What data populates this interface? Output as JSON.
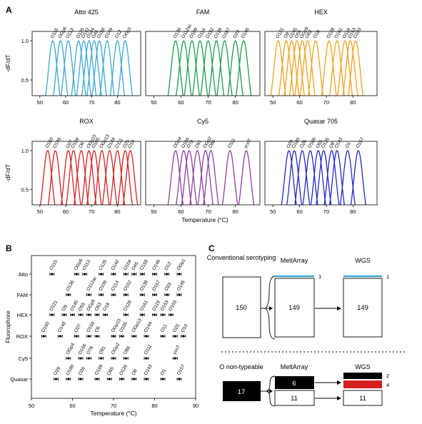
{
  "panel_labels": [
    "A",
    "B",
    "C"
  ],
  "chart_data": [
    {
      "type": "line",
      "panel": "A",
      "xlabel": "Temperature (°C)",
      "ylabel": "-dF/dT",
      "xlim": [
        47,
        89
      ],
      "ylim": [
        0.3,
        1.12
      ],
      "xticks": [
        50,
        60,
        70,
        80
      ],
      "yticks": [
        0.5,
        1.0
      ],
      "colors": {
        "Atto 425": "#3aa7d6",
        "FAM": "#1e9e4a",
        "HEX": "#f0a21c",
        "ROX": "#d42020",
        "Cy5": "#8a3fa0",
        "Quasar 705": "#2028c8"
      },
      "series": [
        {
          "name": "Atto 425",
          "peaks": [
            {
              "label": "O115",
              "tm": 55
            },
            {
              "label": "OGp6",
              "tm": 58
            },
            {
              "label": "O113",
              "tm": 61
            },
            {
              "label": "O125",
              "tm": 65
            },
            {
              "label": "O142",
              "tm": 67
            },
            {
              "label": "O104",
              "tm": 69
            },
            {
              "label": "O45",
              "tm": 71
            },
            {
              "label": "O158",
              "tm": 73
            },
            {
              "label": "O149",
              "tm": 76
            },
            {
              "label": "O12",
              "tm": 80
            },
            {
              "label": "OGp1",
              "tm": 83
            }
          ]
        },
        {
          "name": "FAM",
          "peaks": [
            {
              "label": "O136",
              "tm": 58
            },
            {
              "label": "O112ac",
              "tm": 61
            },
            {
              "label": "O109",
              "tm": 64
            },
            {
              "label": "O114",
              "tm": 67
            },
            {
              "label": "O152",
              "tm": 70
            },
            {
              "label": "O139",
              "tm": 73
            },
            {
              "label": "O167",
              "tm": 76
            },
            {
              "label": "O23",
              "tm": 80
            },
            {
              "label": "O146",
              "tm": 83
            }
          ]
        },
        {
          "name": "HEX",
          "peaks": [
            {
              "label": "O121",
              "tm": 52
            },
            {
              "label": "O9",
              "tm": 55
            },
            {
              "label": "O145",
              "tm": 57
            },
            {
              "label": "O55",
              "tm": 59
            },
            {
              "label": "OGp9",
              "tm": 61
            },
            {
              "label": "O63",
              "tm": 63
            },
            {
              "label": "O18",
              "tm": 66
            },
            {
              "label": "O128",
              "tm": 71
            },
            {
              "label": "O161",
              "tm": 74
            },
            {
              "label": "O119",
              "tm": 77
            },
            {
              "label": "O153",
              "tm": 79
            },
            {
              "label": "O103",
              "tm": 81
            }
          ]
        },
        {
          "name": "ROX",
          "peaks": [
            {
              "label": "O160",
              "tm": 53
            },
            {
              "label": "O148",
              "tm": 56
            },
            {
              "label": "O27",
              "tm": 61
            },
            {
              "label": "O159",
              "tm": 63
            },
            {
              "label": "O6",
              "tm": 66
            },
            {
              "label": "OGp15",
              "tm": 69
            },
            {
              "label": "O105",
              "tm": 71
            },
            {
              "label": "OGp13",
              "tm": 74
            },
            {
              "label": "O144",
              "tm": 77
            },
            {
              "label": "O111",
              "tm": 80
            },
            {
              "label": "O25",
              "tm": 83
            },
            {
              "label": "O10",
              "tm": 85
            }
          ]
        },
        {
          "name": "Cy5",
          "peaks": [
            {
              "label": "OGp4",
              "tm": 58
            },
            {
              "label": "O166",
              "tm": 61
            },
            {
              "label": "O78",
              "tm": 63
            },
            {
              "label": "O91",
              "tm": 66
            },
            {
              "label": "OGp2",
              "tm": 69
            },
            {
              "label": "O86",
              "tm": 71
            },
            {
              "label": "O111",
              "tm": 78
            },
            {
              "label": "ycoT",
              "tm": 84
            }
          ]
        },
        {
          "name": "Quasar 705",
          "peaks": [
            {
              "label": "O29",
              "tm": 56
            },
            {
              "label": "O180",
              "tm": 58
            },
            {
              "label": "O26",
              "tm": 61
            },
            {
              "label": "O169",
              "tm": 64
            },
            {
              "label": "O65",
              "tm": 67
            },
            {
              "label": "O126",
              "tm": 69
            },
            {
              "label": "O8",
              "tm": 72
            },
            {
              "label": "O143",
              "tm": 74
            },
            {
              "label": "O1",
              "tm": 78
            },
            {
              "label": "O157",
              "tm": 82
            }
          ]
        }
      ]
    },
    {
      "type": "scatter",
      "panel": "B",
      "xlabel": "Temperature (°C)",
      "ylabel": "Fluorophore",
      "xlim": [
        50,
        90
      ],
      "xticks": [
        50,
        60,
        70,
        80,
        90
      ],
      "categories": [
        "Atto",
        "FAM",
        "HEX",
        "ROX",
        "Cy5",
        "Quasar"
      ],
      "series": [
        {
          "name": "Atto",
          "points": [
            {
              "label": "O115",
              "tm": 55
            },
            {
              "label": "OGp6",
              "tm": 61
            },
            {
              "label": "O113",
              "tm": 63
            },
            {
              "label": "O125",
              "tm": 67
            },
            {
              "label": "O142",
              "tm": 70
            },
            {
              "label": "O104",
              "tm": 73
            },
            {
              "label": "O45",
              "tm": 75
            },
            {
              "label": "O158",
              "tm": 77
            },
            {
              "label": "O149",
              "tm": 80
            },
            {
              "label": "O12",
              "tm": 83
            },
            {
              "label": "OGp1",
              "tm": 86
            }
          ]
        },
        {
          "name": "FAM",
          "points": [
            {
              "label": "O136",
              "tm": 59
            },
            {
              "label": "O112ac",
              "tm": 64
            },
            {
              "label": "O109",
              "tm": 67
            },
            {
              "label": "O114",
              "tm": 70
            },
            {
              "label": "O152",
              "tm": 73
            },
            {
              "label": "O139",
              "tm": 77
            },
            {
              "label": "O167",
              "tm": 80
            },
            {
              "label": "O23",
              "tm": 83
            },
            {
              "label": "O146",
              "tm": 86
            }
          ]
        },
        {
          "name": "HEX",
          "points": [
            {
              "label": "O121",
              "tm": 55
            },
            {
              "label": "O9",
              "tm": 58
            },
            {
              "label": "O145",
              "tm": 60
            },
            {
              "label": "O55",
              "tm": 62
            },
            {
              "label": "OGp9",
              "tm": 64
            },
            {
              "label": "O63",
              "tm": 66
            },
            {
              "label": "O18",
              "tm": 68
            },
            {
              "label": "O128",
              "tm": 73
            },
            {
              "label": "O161",
              "tm": 77
            },
            {
              "label": "O119",
              "tm": 80
            },
            {
              "label": "O153",
              "tm": 82
            },
            {
              "label": "O103",
              "tm": 84
            }
          ]
        },
        {
          "name": "ROX",
          "points": [
            {
              "label": "O160",
              "tm": 53
            },
            {
              "label": "O148",
              "tm": 57
            },
            {
              "label": "O27",
              "tm": 61
            },
            {
              "label": "O159",
              "tm": 64
            },
            {
              "label": "O6",
              "tm": 66
            },
            {
              "label": "OGp15",
              "tm": 70
            },
            {
              "label": "O105",
              "tm": 72
            },
            {
              "label": "OGp13",
              "tm": 75
            },
            {
              "label": "O144",
              "tm": 78
            },
            {
              "label": "O11",
              "tm": 82
            },
            {
              "label": "O25",
              "tm": 85
            },
            {
              "label": "O10",
              "tm": 87
            }
          ]
        },
        {
          "name": "Cy5",
          "points": [
            {
              "label": "OGp4",
              "tm": 59
            },
            {
              "label": "O166",
              "tm": 62
            },
            {
              "label": "O78",
              "tm": 64
            },
            {
              "label": "O91",
              "tm": 67
            },
            {
              "label": "OGp2",
              "tm": 70
            },
            {
              "label": "O86",
              "tm": 73
            },
            {
              "label": "O111",
              "tm": 78
            },
            {
              "label": "ycoT",
              "tm": 85
            }
          ]
        },
        {
          "name": "Quasar",
          "points": [
            {
              "label": "O29",
              "tm": 56
            },
            {
              "label": "O180",
              "tm": 59
            },
            {
              "label": "O26",
              "tm": 62
            },
            {
              "label": "O169",
              "tm": 66
            },
            {
              "label": "O65",
              "tm": 69
            },
            {
              "label": "O126",
              "tm": 72
            },
            {
              "label": "O8",
              "tm": 75
            },
            {
              "label": "O143",
              "tm": 78
            },
            {
              "label": "O1",
              "tm": 82
            },
            {
              "label": "O157",
              "tm": 86
            }
          ]
        }
      ]
    }
  ],
  "panel_c": {
    "top": {
      "col1": "Conventional serotyping",
      "col2": "MeltArray",
      "col3": "WGS",
      "box1": "150",
      "box2": "149",
      "box3": "149",
      "line_count2": "1",
      "line_count3": "1"
    },
    "bottom": {
      "col1": "O non-typeable",
      "col2": "MeltArray",
      "col3": "WGS",
      "box1": "17",
      "box2_black": "6",
      "box2_white": "11",
      "box3_white": "11",
      "count_black": "2",
      "count_red": "4"
    }
  }
}
